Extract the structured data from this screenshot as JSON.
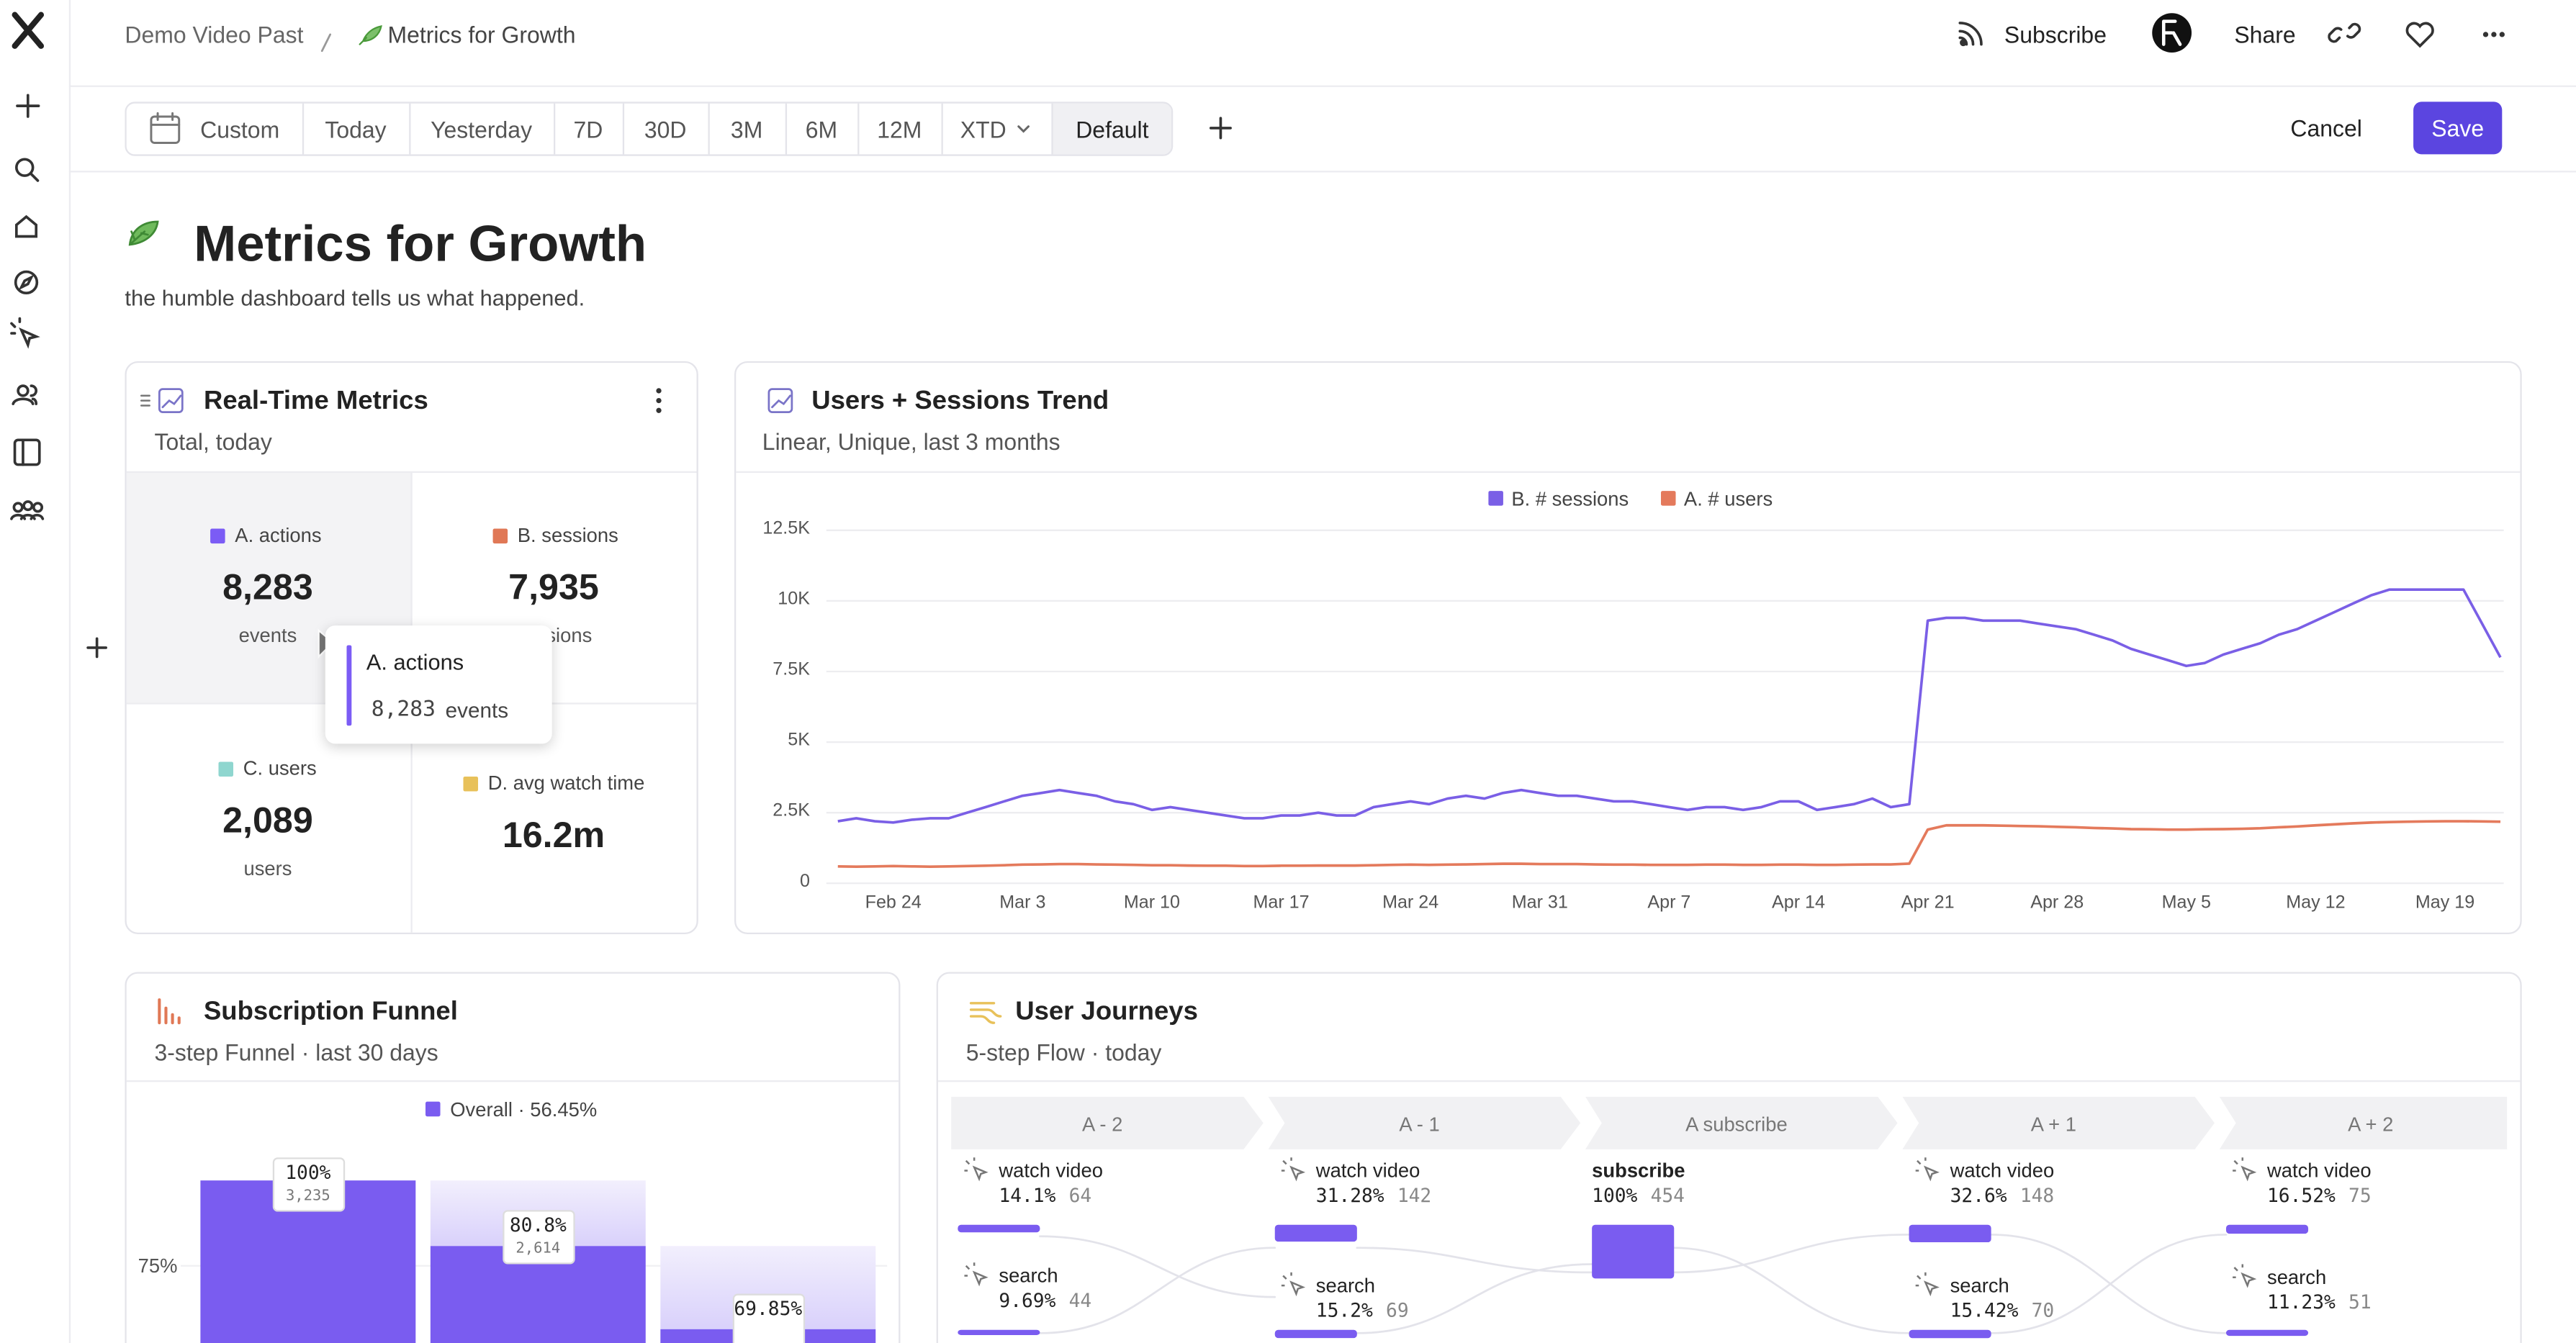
{
  "breadcrumb": {
    "parent": "Demo Video Past",
    "current": "Metrics for Growth"
  },
  "header_actions": {
    "subscribe": "Subscribe",
    "share": "Share"
  },
  "date_range": {
    "options": [
      "Custom",
      "Today",
      "Yesterday",
      "7D",
      "30D",
      "3M",
      "6M",
      "12M",
      "XTD"
    ],
    "default": "Default"
  },
  "edit_actions": {
    "cancel": "Cancel",
    "save": "Save"
  },
  "dashboard": {
    "title": "Metrics for Growth",
    "description": "the humble dashboard tells us what happened."
  },
  "realtime": {
    "title": "Real-Time Metrics",
    "subtitle": "Total, today",
    "metrics": [
      {
        "name": "A. actions",
        "value": "8,283",
        "unit": "events",
        "color": "#7b5cf5"
      },
      {
        "name": "B. sessions",
        "value": "7,935",
        "unit": "sessions",
        "color": "#e07856"
      },
      {
        "name": "C. users",
        "value": "2,089",
        "unit": "users",
        "color": "#8fd6cf"
      },
      {
        "name": "D. avg watch time",
        "value": "16.2m",
        "color": "#e8c15a"
      }
    ],
    "tooltip": {
      "name": "A. actions",
      "value": "8,283",
      "unit": "events"
    }
  },
  "trend": {
    "title": "Users + Sessions Trend",
    "subtitle": "Linear, Unique, last 3 months",
    "x": [
      null,
      null,
      null,
      "Feb 24",
      null,
      null,
      null,
      null,
      null,
      null,
      "Mar 3",
      null,
      null,
      null,
      null,
      null,
      null,
      "Mar 10",
      null,
      null,
      null,
      null,
      null,
      null,
      "Mar 17",
      null,
      null,
      null,
      null,
      null,
      null,
      "Mar 24",
      null,
      null,
      null,
      null,
      null,
      null,
      "Mar 31",
      null,
      null,
      null,
      null,
      null,
      null,
      "Apr 7",
      null,
      null,
      null,
      null,
      null,
      null,
      "Apr 14",
      null,
      null,
      null,
      null,
      null,
      null,
      "Apr 21",
      null,
      null,
      null,
      null,
      null,
      null,
      "Apr 28",
      null,
      null,
      null,
      null,
      null,
      null,
      "May 5",
      null,
      null,
      null,
      null,
      null,
      null,
      "May 12",
      null,
      null,
      null,
      null,
      null,
      null,
      "May 19",
      null,
      null,
      null
    ],
    "series": [
      {
        "name": "B. # sessions",
        "color": "#7a5fe6",
        "values": [
          2200,
          2300,
          2200,
          2150,
          2250,
          2300,
          2300,
          2500,
          2700,
          2900,
          3100,
          3200,
          3300,
          3200,
          3100,
          2900,
          2800,
          2600,
          2700,
          2600,
          2500,
          2400,
          2300,
          2300,
          2400,
          2400,
          2500,
          2400,
          2400,
          2700,
          2800,
          2900,
          2800,
          3000,
          3100,
          3000,
          3200,
          3300,
          3200,
          3100,
          3100,
          3000,
          2900,
          2900,
          2800,
          2700,
          2600,
          2700,
          2700,
          2600,
          2700,
          2900,
          2900,
          2600,
          2700,
          2800,
          3000,
          2700,
          2800,
          9300,
          9400,
          9400,
          9300,
          9300,
          9300,
          9200,
          9100,
          9000,
          8800,
          8600,
          8300,
          8100,
          7900,
          7700,
          7800,
          8100,
          8300,
          8500,
          8800,
          9000,
          9300,
          9600,
          9900,
          10200,
          10400,
          10400,
          10400,
          10400,
          10400,
          9200,
          8000
        ]
      },
      {
        "name": "A. # users",
        "color": "#e47a5c",
        "values": [
          600,
          590,
          600,
          610,
          600,
          590,
          600,
          610,
          620,
          640,
          660,
          670,
          680,
          680,
          670,
          660,
          650,
          640,
          640,
          630,
          620,
          620,
          610,
          610,
          620,
          620,
          630,
          630,
          630,
          640,
          650,
          660,
          650,
          660,
          670,
          680,
          690,
          690,
          680,
          680,
          680,
          670,
          660,
          660,
          650,
          650,
          650,
          660,
          660,
          650,
          650,
          660,
          660,
          650,
          650,
          660,
          670,
          670,
          700,
          1900,
          2050,
          2050,
          2050,
          2040,
          2030,
          2020,
          2000,
          1980,
          1960,
          1940,
          1920,
          1910,
          1900,
          1900,
          1910,
          1920,
          1930,
          1950,
          1980,
          2010,
          2050,
          2090,
          2120,
          2150,
          2170,
          2180,
          2190,
          2200,
          2200,
          2190,
          2180
        ]
      }
    ],
    "ylim": [
      0,
      12500
    ],
    "yticks": [
      0,
      {
        "value": 2500,
        "label": "2.5K"
      },
      {
        "value": 5000,
        "label": "5K"
      },
      {
        "value": 7500,
        "label": "7.5K"
      },
      {
        "value": 10000,
        "label": "10K"
      },
      {
        "value": 12500,
        "label": "12.5K"
      }
    ],
    "grid": true
  },
  "funnel": {
    "title": "Subscription Funnel",
    "subtitle": "3-step Funnel · last 30 days",
    "legend": "Overall · 56.45%",
    "color": "#7a5cf0",
    "ylim": [
      0,
      100
    ],
    "yticks": [
      {
        "value": 75,
        "label": "75%"
      }
    ],
    "steps": [
      {
        "value": 100,
        "value_label": "100%",
        "count": "3,235"
      },
      {
        "value": 80.8,
        "value_label": "80.8%",
        "count": "2,614"
      },
      {
        "value": 69.85,
        "value_label": "69.85%"
      }
    ]
  },
  "journeys": {
    "title": "User Journeys",
    "subtitle": "5-step Flow · today",
    "columns": [
      {
        "step": "A - 2",
        "events": [
          {
            "label": "watch video",
            "percent": 14.1,
            "percent_label": "14.1%",
            "count": 64
          },
          {
            "label": "search",
            "percent": 9.69,
            "percent_label": "9.69%",
            "count": 44
          }
        ]
      },
      {
        "step": "A - 1",
        "events": [
          {
            "label": "watch video",
            "percent": 31.28,
            "percent_label": "31.28%",
            "count": 142
          },
          {
            "label": "search",
            "percent": 15.2,
            "percent_label": "15.2%",
            "count": 69
          }
        ]
      },
      {
        "step": "A subscribe",
        "events": [
          {
            "label": "subscribe",
            "percent": 100,
            "percent_label": "100%",
            "count": 454
          }
        ]
      },
      {
        "step": "A + 1",
        "events": [
          {
            "label": "watch video",
            "percent": 32.6,
            "percent_label": "32.6%",
            "count": 148
          },
          {
            "label": "search",
            "percent": 15.42,
            "percent_label": "15.42%",
            "count": 70
          }
        ]
      },
      {
        "step": "A + 2",
        "events": [
          {
            "label": "watch video",
            "percent": 16.52,
            "percent_label": "16.52%",
            "count": 75
          },
          {
            "label": "search",
            "percent": 11.23,
            "percent_label": "11.23%",
            "count": 51
          }
        ]
      }
    ]
  }
}
